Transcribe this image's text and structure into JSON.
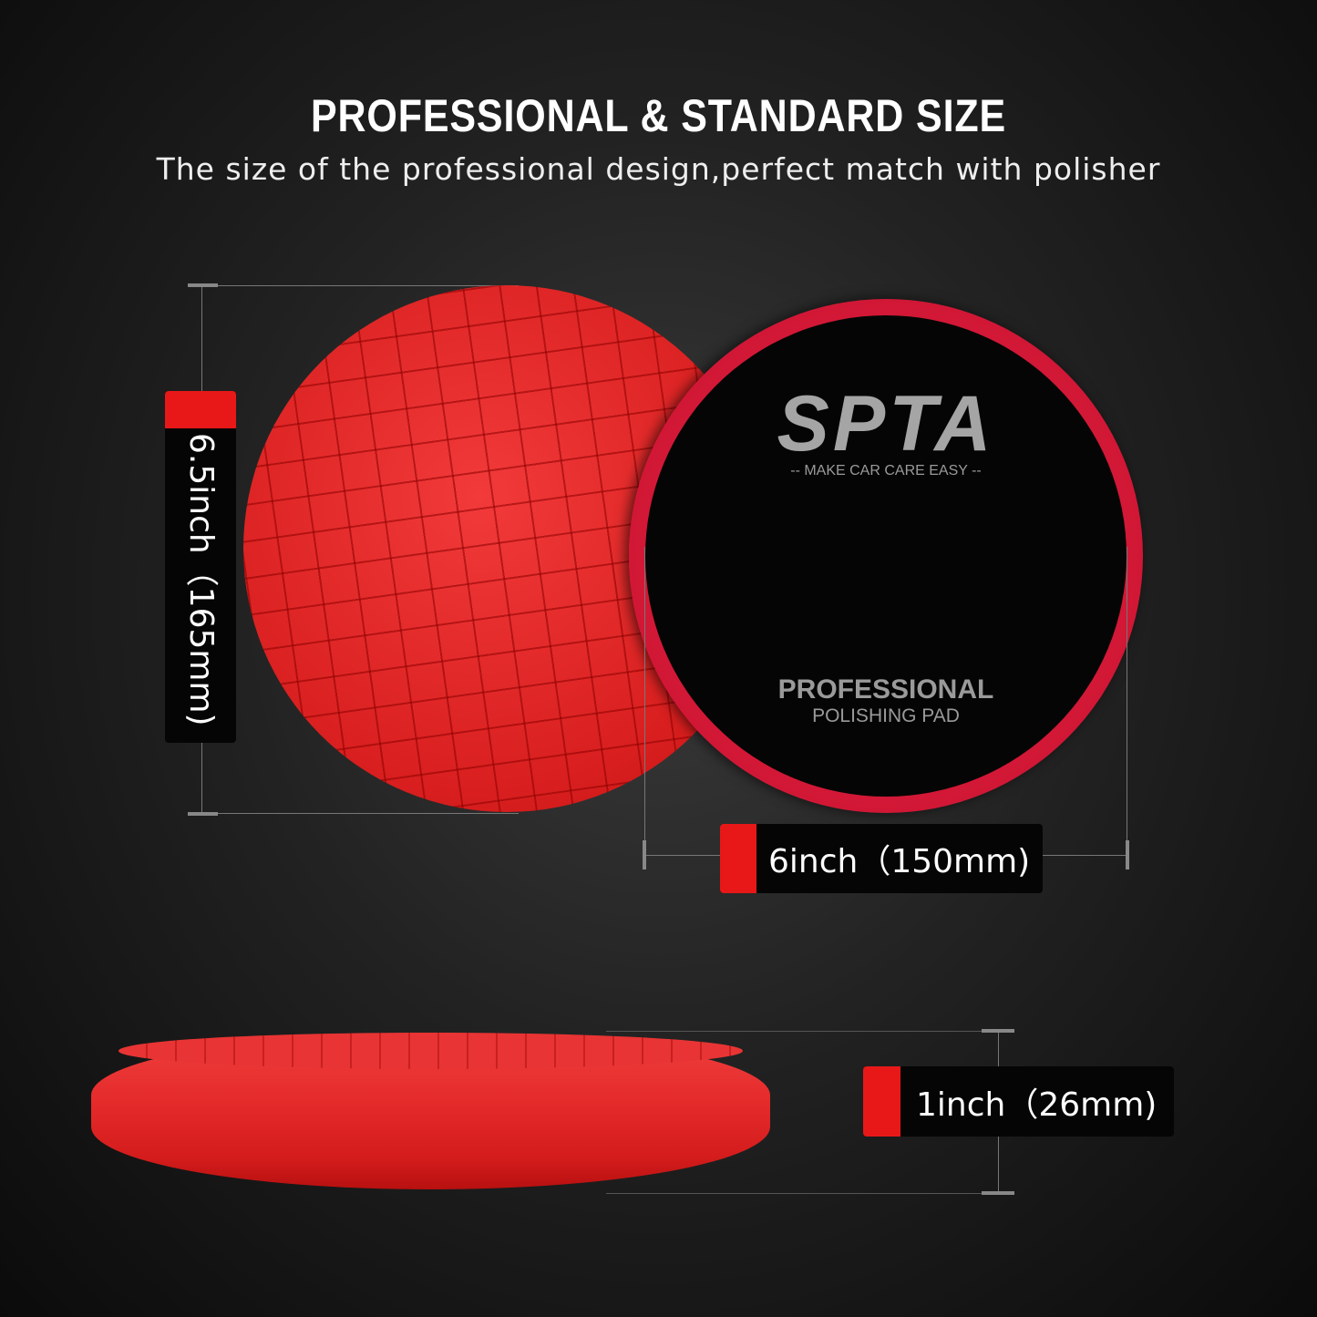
{
  "header": {
    "title": "PROFESSIONAL & STANDARD SIZE",
    "subtitle": "The size of the professional design,perfect match with polisher"
  },
  "product": {
    "brand": "SPTA",
    "registered": "®",
    "tagline": "-- MAKE CAR CARE EASY --",
    "line1": "PROFESSIONAL",
    "line2": "POLISHING PAD"
  },
  "dimensions": {
    "diameter_outer": "6.5inch（165mm)",
    "diameter_backing": "6inch（150mm)",
    "thickness": "1inch（26mm)"
  },
  "colors": {
    "accent": "#e81818",
    "pad": "#e02626",
    "label_bg": "#050505"
  }
}
